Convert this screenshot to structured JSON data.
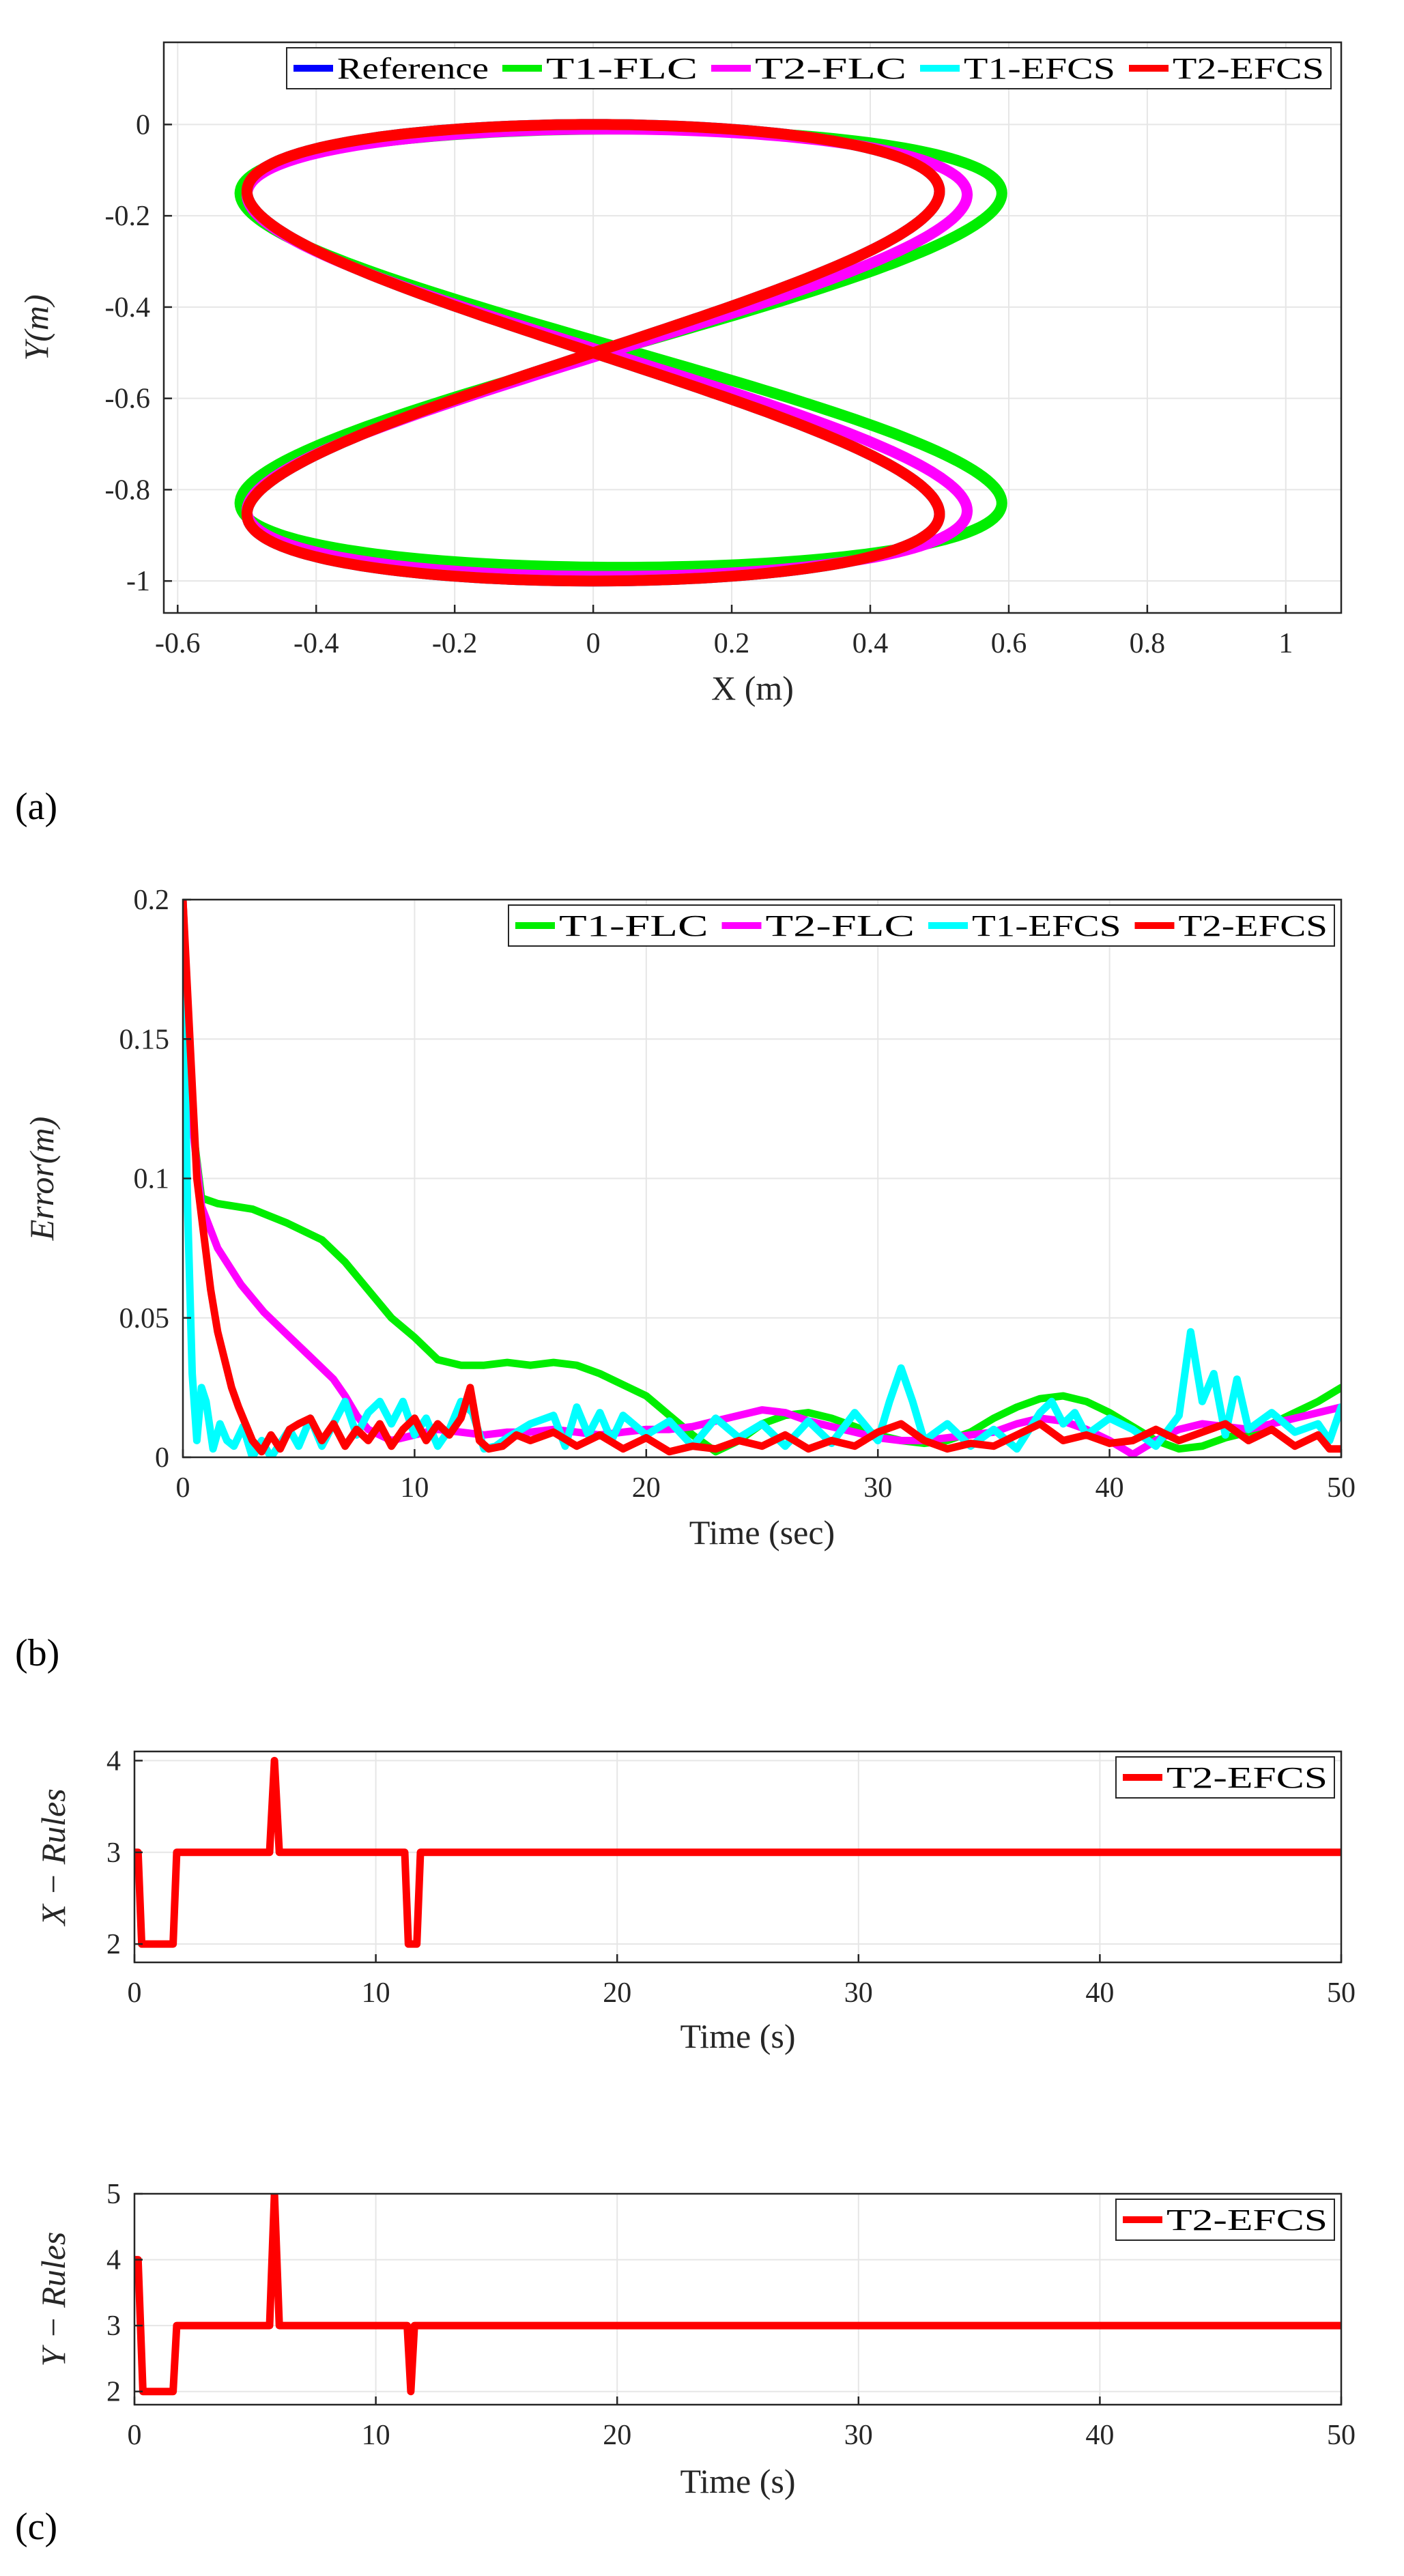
{
  "panels": [
    {
      "label": "(a)"
    },
    {
      "label": "(b)"
    },
    {
      "label": "(c)"
    }
  ],
  "colors": {
    "Reference": "#0000ff",
    "T1-FLC": "#00ee00",
    "T2-FLC": "#ff00ff",
    "T1-EFCS": "#00ffff",
    "T2-EFCS": "#ff0000"
  },
  "chart_data": [
    {
      "id": "a",
      "type": "line",
      "title": "",
      "xlabel": "X (m)",
      "ylabel": "Y(m)",
      "xlim": [
        -0.62,
        1.08
      ],
      "ylim": [
        -1.07,
        0.18
      ],
      "xticks": [
        -0.6,
        -0.4,
        -0.2,
        0,
        0.2,
        0.4,
        0.6,
        0.8,
        1
      ],
      "xtick_labels": [
        "-0.6",
        "-0.4",
        "-0.2",
        "0",
        "0.2",
        "0.4",
        "0.6",
        "0.8",
        "1"
      ],
      "yticks": [
        0,
        -0.2,
        -0.4,
        -0.6,
        -0.8,
        -1
      ],
      "ytick_labels": [
        "0",
        "-0.2",
        "-0.4",
        "-0.6",
        "-0.8",
        "-1"
      ],
      "grid": true,
      "legend": [
        "Reference",
        "T1-FLC",
        "T2-FLC",
        "T1-EFCS",
        "T2-EFCS"
      ],
      "legend_position": "top",
      "series": [
        {
          "name": "Reference",
          "shape": "figure-eight",
          "cx": 0,
          "cy": -0.5,
          "ax": 0.5,
          "ay": 0.5,
          "x": [],
          "y": []
        },
        {
          "name": "T1-FLC",
          "shape": "figure-eight",
          "cx": 0.04,
          "cy": -0.49,
          "ax": 0.55,
          "ay": 0.48,
          "x": [],
          "y": []
        },
        {
          "name": "T2-FLC",
          "shape": "figure-eight",
          "cx": 0.02,
          "cy": -0.5,
          "ax": 0.52,
          "ay": 0.49,
          "x": [],
          "y": []
        },
        {
          "name": "T1-EFCS",
          "shape": "figure-eight",
          "cx": 0,
          "cy": -0.5,
          "ax": 0.5,
          "ay": 0.5,
          "x": [],
          "y": []
        },
        {
          "name": "T2-EFCS",
          "shape": "figure-eight",
          "cx": 0,
          "cy": -0.5,
          "ax": 0.5,
          "ay": 0.5,
          "x": [],
          "y": []
        }
      ]
    },
    {
      "id": "b",
      "type": "line",
      "title": "",
      "xlabel": "Time (sec)",
      "ylabel": "Error(m)",
      "xlim": [
        0,
        50
      ],
      "ylim": [
        0,
        0.2
      ],
      "xticks": [
        0,
        10,
        20,
        30,
        40,
        50
      ],
      "xtick_labels": [
        "0",
        "10",
        "20",
        "30",
        "40",
        "50"
      ],
      "yticks": [
        0,
        0.05,
        0.1,
        0.15,
        0.2
      ],
      "ytick_labels": [
        "0",
        "0.05",
        "0.1",
        "0.15",
        "0.2"
      ],
      "grid": true,
      "legend": [
        "T1-FLC",
        "T2-FLC",
        "T1-EFCS",
        "T2-EFCS"
      ],
      "legend_position": "top-right",
      "series": [
        {
          "name": "T1-FLC",
          "x": [
            0,
            0.4,
            0.8,
            1.5,
            3,
            4.5,
            6,
            7,
            8,
            9,
            10,
            11,
            12,
            13,
            14,
            15,
            16,
            17,
            18,
            19,
            20,
            21,
            22,
            23,
            24,
            25,
            26,
            27,
            28,
            29,
            30,
            31,
            32,
            33,
            34,
            35,
            36,
            37,
            38,
            39,
            40,
            41,
            42,
            43,
            44,
            45,
            46,
            47,
            48,
            49,
            50
          ],
          "y": [
            0.2,
            0.12,
            0.093,
            0.091,
            0.089,
            0.084,
            0.078,
            0.07,
            0.06,
            0.05,
            0.043,
            0.035,
            0.033,
            0.033,
            0.034,
            0.033,
            0.034,
            0.033,
            0.03,
            0.026,
            0.022,
            0.015,
            0.008,
            0.002,
            0.006,
            0.012,
            0.015,
            0.016,
            0.014,
            0.011,
            0.008,
            0.006,
            0.005,
            0.006,
            0.009,
            0.014,
            0.018,
            0.021,
            0.022,
            0.02,
            0.016,
            0.011,
            0.006,
            0.003,
            0.004,
            0.007,
            0.009,
            0.012,
            0.016,
            0.02,
            0.025
          ]
        },
        {
          "name": "T2-FLC",
          "x": [
            0,
            0.4,
            0.8,
            1.5,
            2.5,
            3.5,
            4.5,
            5.5,
            6.5,
            7,
            7.5,
            8,
            9,
            10,
            11,
            12,
            13,
            14,
            15,
            16,
            17,
            18,
            19,
            20,
            21,
            22,
            23,
            24,
            25,
            26,
            27,
            28,
            29,
            30,
            31,
            32,
            33,
            34,
            35,
            36,
            37,
            38,
            39,
            40,
            41,
            42,
            43,
            44,
            45,
            46,
            47,
            48,
            49,
            50
          ],
          "y": [
            0.2,
            0.12,
            0.09,
            0.075,
            0.062,
            0.052,
            0.044,
            0.036,
            0.028,
            0.022,
            0.015,
            0.01,
            0.006,
            0.008,
            0.01,
            0.009,
            0.008,
            0.009,
            0.009,
            0.01,
            0.009,
            0.008,
            0.009,
            0.01,
            0.01,
            0.011,
            0.013,
            0.015,
            0.017,
            0.016,
            0.013,
            0.011,
            0.009,
            0.007,
            0.006,
            0.006,
            0.007,
            0.008,
            0.009,
            0.012,
            0.014,
            0.013,
            0.01,
            0.006,
            0.001,
            0.006,
            0.01,
            0.012,
            0.011,
            0.01,
            0.012,
            0.014,
            0.016,
            0.018
          ]
        },
        {
          "name": "T1-EFCS",
          "x": [
            0,
            0.2,
            0.4,
            0.6,
            0.8,
            1,
            1.3,
            1.6,
            1.9,
            2.2,
            2.6,
            3,
            3.4,
            3.8,
            4.2,
            4.6,
            5,
            5.5,
            6,
            6.5,
            7,
            7.5,
            8,
            8.5,
            9,
            9.5,
            10,
            10.5,
            11,
            11.5,
            12,
            12.5,
            13,
            13.5,
            14,
            15,
            16,
            16.5,
            17,
            17.5,
            18,
            18.5,
            19,
            20,
            21,
            22,
            23,
            24,
            25,
            26,
            27,
            28,
            29,
            30,
            30.5,
            31,
            31.5,
            32,
            33,
            34,
            35,
            36,
            37,
            37.5,
            38,
            38.5,
            39,
            40,
            41,
            42,
            43,
            43.5,
            44,
            44.5,
            45,
            45.5,
            46,
            47,
            48,
            49,
            49.5,
            50
          ],
          "y": [
            0.18,
            0.09,
            0.03,
            0.006,
            0.025,
            0.02,
            0.003,
            0.012,
            0.006,
            0.004,
            0.011,
            0.0,
            0.006,
            0.0,
            0.005,
            0.01,
            0.004,
            0.014,
            0.004,
            0.012,
            0.02,
            0.008,
            0.016,
            0.02,
            0.012,
            0.02,
            0.008,
            0.014,
            0.004,
            0.01,
            0.02,
            0.016,
            0.003,
            0.004,
            0.007,
            0.012,
            0.015,
            0.004,
            0.018,
            0.008,
            0.016,
            0.006,
            0.015,
            0.008,
            0.013,
            0.004,
            0.014,
            0.007,
            0.012,
            0.004,
            0.013,
            0.005,
            0.016,
            0.006,
            0.02,
            0.032,
            0.02,
            0.006,
            0.012,
            0.004,
            0.01,
            0.003,
            0.016,
            0.02,
            0.012,
            0.016,
            0.008,
            0.014,
            0.01,
            0.004,
            0.015,
            0.045,
            0.02,
            0.03,
            0.008,
            0.028,
            0.01,
            0.016,
            0.009,
            0.012,
            0.006,
            0.018
          ]
        },
        {
          "name": "T2-EFCS",
          "x": [
            0,
            0.3,
            0.6,
            0.9,
            1.2,
            1.5,
            1.8,
            2.1,
            2.4,
            2.7,
            3.0,
            3.4,
            3.8,
            4.2,
            4.6,
            5.0,
            5.5,
            6.0,
            6.5,
            7.0,
            7.5,
            8.0,
            8.5,
            9.0,
            9.5,
            10.0,
            10.5,
            11.0,
            11.5,
            12.0,
            12.4,
            12.8,
            13.2,
            13.8,
            14.4,
            15,
            16,
            17,
            18,
            19,
            20,
            21,
            22,
            23,
            24,
            25,
            26,
            27,
            28,
            29,
            30,
            31,
            32,
            33,
            34,
            35,
            36,
            37,
            38,
            39,
            40,
            41,
            42,
            43,
            44,
            45,
            46,
            47,
            48,
            49,
            49.5,
            50
          ],
          "y": [
            0.2,
            0.15,
            0.1,
            0.08,
            0.06,
            0.045,
            0.035,
            0.025,
            0.018,
            0.012,
            0.006,
            0.002,
            0.008,
            0.003,
            0.01,
            0.012,
            0.014,
            0.006,
            0.012,
            0.004,
            0.01,
            0.006,
            0.012,
            0.004,
            0.01,
            0.014,
            0.006,
            0.012,
            0.008,
            0.014,
            0.025,
            0.006,
            0.003,
            0.004,
            0.008,
            0.006,
            0.009,
            0.004,
            0.008,
            0.003,
            0.007,
            0.002,
            0.004,
            0.003,
            0.006,
            0.004,
            0.008,
            0.003,
            0.006,
            0.004,
            0.009,
            0.012,
            0.006,
            0.003,
            0.005,
            0.004,
            0.008,
            0.012,
            0.006,
            0.008,
            0.005,
            0.006,
            0.01,
            0.006,
            0.009,
            0.012,
            0.006,
            0.01,
            0.004,
            0.008,
            0.003,
            0.003
          ]
        }
      ]
    },
    {
      "id": "c1",
      "type": "line",
      "title": "",
      "xlabel": "Time (s)",
      "ylabel": "X − Rules",
      "xlim": [
        0,
        50
      ],
      "ylim": [
        1.8,
        4.1
      ],
      "xticks": [
        0,
        10,
        20,
        30,
        40,
        50
      ],
      "xtick_labels": [
        "0",
        "10",
        "20",
        "30",
        "40",
        "50"
      ],
      "yticks": [
        2,
        3,
        4
      ],
      "ytick_labels": [
        "2",
        "3",
        "4"
      ],
      "grid": true,
      "legend": [
        "T2-EFCS"
      ],
      "legend_position": "top-right",
      "series": [
        {
          "name": "T2-EFCS",
          "x": [
            0,
            0.15,
            0.3,
            1.6,
            1.75,
            5.6,
            5.8,
            6.0,
            11.2,
            11.35,
            11.7,
            11.85,
            50
          ],
          "y": [
            3,
            3,
            2,
            2,
            3,
            3,
            4,
            3,
            3,
            2,
            2,
            3,
            3
          ]
        }
      ]
    },
    {
      "id": "c2",
      "type": "line",
      "title": "",
      "xlabel": "Time (s)",
      "ylabel": "Y − Rules",
      "xlim": [
        0,
        50
      ],
      "ylim": [
        1.8,
        5.0
      ],
      "xticks": [
        0,
        10,
        20,
        30,
        40,
        50
      ],
      "xtick_labels": [
        "0",
        "10",
        "20",
        "30",
        "40",
        "50"
      ],
      "yticks": [
        2,
        3,
        4,
        5
      ],
      "ytick_labels": [
        "2",
        "3",
        "4",
        "5"
      ],
      "grid": true,
      "legend": [
        "T2-EFCS"
      ],
      "legend_position": "top-right",
      "series": [
        {
          "name": "T2-EFCS",
          "x": [
            0,
            0.15,
            0.35,
            1.6,
            1.75,
            5.6,
            5.8,
            6.0,
            11.3,
            11.45,
            11.6,
            50
          ],
          "y": [
            4,
            4,
            2,
            2,
            3,
            3,
            5,
            3,
            3,
            2,
            3,
            3
          ]
        }
      ]
    }
  ]
}
